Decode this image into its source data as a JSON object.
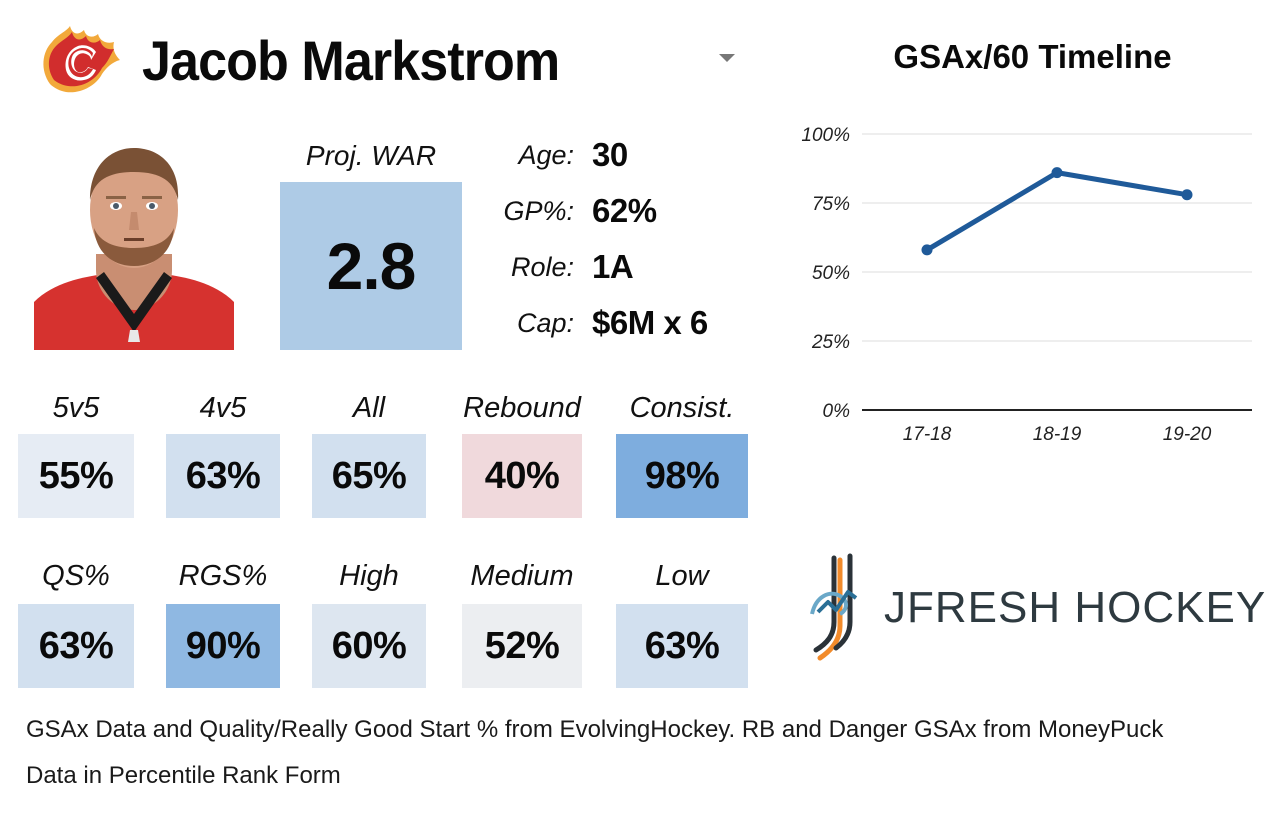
{
  "header": {
    "player_name": "Jacob Markstrom",
    "team_logo_icon": "calgary-flames-logo-icon",
    "dropdown_icon": "caret-down-icon"
  },
  "projection": {
    "label": "Proj. WAR",
    "value": "2.8",
    "color": "#aecbe6"
  },
  "info": [
    {
      "key": "Age:",
      "value": "30"
    },
    {
      "key": "GP%:",
      "value": "62%"
    },
    {
      "key": "Role:",
      "value": "1A"
    },
    {
      "key": "Cap:",
      "value": "$6M x 6"
    }
  ],
  "stats_row1": [
    {
      "label": "5v5",
      "value": "55%",
      "color": "#e6ecf4"
    },
    {
      "label": "4v5",
      "value": "63%",
      "color": "#d2e0ef"
    },
    {
      "label": "All",
      "value": "65%",
      "color": "#d2e0ef"
    },
    {
      "label": "Rebound",
      "value": "40%",
      "color": "#f0d9dc"
    },
    {
      "label": "Consist.",
      "value": "98%",
      "color": "#7eadde"
    }
  ],
  "stats_row2": [
    {
      "label": "QS%",
      "value": "63%",
      "color": "#d2e0ef"
    },
    {
      "label": "RGS%",
      "value": "90%",
      "color": "#8fb8e2"
    },
    {
      "label": "High",
      "value": "60%",
      "color": "#dde6f0"
    },
    {
      "label": "Medium",
      "value": "52%",
      "color": "#eceef1"
    },
    {
      "label": "Low",
      "value": "63%",
      "color": "#d2e0ef"
    }
  ],
  "chart_data": {
    "type": "line",
    "title": "GSAx/60 Timeline",
    "categories": [
      "17-18",
      "18-19",
      "19-20"
    ],
    "series": [
      {
        "values": [
          58,
          86,
          78
        ]
      }
    ],
    "y_ticks": [
      "0%",
      "25%",
      "50%",
      "75%",
      "100%"
    ],
    "ylim": [
      0,
      100
    ],
    "grid": true,
    "line_color": "#1f5a99"
  },
  "brand": {
    "text": "JFRESH HOCKEY",
    "icon": "jfresh-hockey-logo-icon"
  },
  "footnotes": {
    "line1": "GSAx Data and Quality/Really Good Start % from EvolvingHockey. RB and Danger GSAx from MoneyPuck",
    "line2": "Data in Percentile Rank Form"
  }
}
